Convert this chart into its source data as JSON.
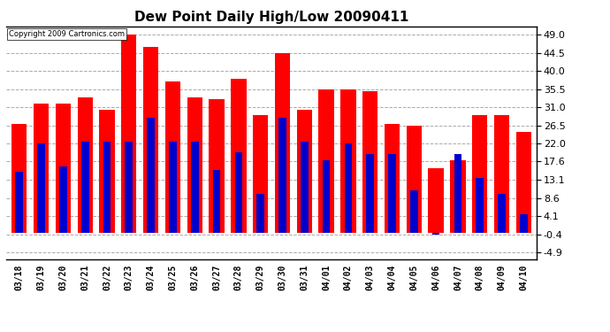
{
  "title": "Dew Point Daily High/Low 20090411",
  "copyright": "Copyright 2009 Cartronics.com",
  "dates": [
    "03/18",
    "03/19",
    "03/20",
    "03/21",
    "03/22",
    "03/23",
    "03/24",
    "03/25",
    "03/26",
    "03/27",
    "03/28",
    "03/29",
    "03/30",
    "03/31",
    "04/01",
    "04/02",
    "04/03",
    "04/04",
    "04/05",
    "04/06",
    "04/07",
    "04/08",
    "04/09",
    "04/10"
  ],
  "highs": [
    27.0,
    32.0,
    32.0,
    33.5,
    30.5,
    49.0,
    46.0,
    37.5,
    33.5,
    33.0,
    38.0,
    29.0,
    44.5,
    30.5,
    35.5,
    35.5,
    35.0,
    27.0,
    26.5,
    16.0,
    18.0,
    29.0,
    29.0,
    25.0
  ],
  "lows": [
    15.0,
    22.0,
    16.5,
    22.5,
    22.5,
    22.5,
    28.5,
    22.5,
    22.5,
    15.5,
    20.0,
    9.5,
    28.5,
    22.5,
    18.0,
    22.0,
    19.5,
    19.5,
    10.5,
    -0.5,
    19.5,
    13.5,
    9.5,
    4.5
  ],
  "high_color": "#ff0000",
  "low_color": "#0000cc",
  "bg_color": "#ffffff",
  "grid_color": "#aaaaaa",
  "yticks": [
    -4.9,
    -0.4,
    4.1,
    8.6,
    13.1,
    17.6,
    22.0,
    26.5,
    31.0,
    35.5,
    40.0,
    44.5,
    49.0
  ],
  "ylim": [
    -6.5,
    51.0
  ],
  "title_fontsize": 11
}
